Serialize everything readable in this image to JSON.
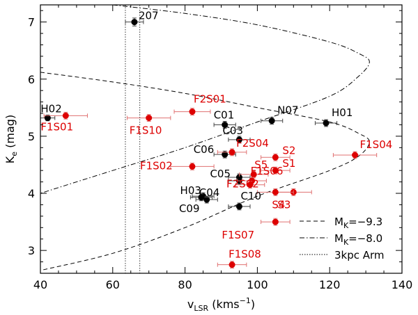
{
  "chart_data": {
    "type": "scatter",
    "title": "",
    "xlabel": {
      "main": "v",
      "sub": "LSR",
      "unit": "(kms",
      "sup": "−1",
      "close": ")"
    },
    "ylabel": {
      "main": "K",
      "sub": "e",
      "unit": "(mag)"
    },
    "xlim": [
      40,
      140
    ],
    "ylim": [
      2.6,
      7.3
    ],
    "xticks": [
      40,
      60,
      80,
      100,
      120,
      140
    ],
    "yticks": [
      3,
      4,
      5,
      6,
      7
    ],
    "colors": {
      "black": "#000000",
      "red": "#dd0000",
      "errbar_black": "#444444",
      "errbar_red": "#e07070"
    },
    "series": [
      {
        "name": "black",
        "points": [
          {
            "label": "207",
            "x": 66,
            "y": 7.0,
            "xerr": 2.5,
            "yerr": 0.07
          },
          {
            "label": "H02",
            "x": 42,
            "y": 5.32,
            "xerr": 2,
            "yerr": 0.05
          },
          {
            "label": "C01",
            "x": 91,
            "y": 5.2,
            "xerr": 3,
            "yerr": 0.06
          },
          {
            "label": "N07",
            "x": 104,
            "y": 5.27,
            "xerr": 3,
            "yerr": 0.06
          },
          {
            "label": "H01",
            "x": 119,
            "y": 5.23,
            "xerr": 3,
            "yerr": 0.06
          },
          {
            "label": "C03",
            "x": 95,
            "y": 4.94,
            "xerr": 3,
            "yerr": 0.06
          },
          {
            "label": "C06",
            "x": 91,
            "y": 4.68,
            "xerr": 3,
            "yerr": 0.06
          },
          {
            "label": "C05",
            "x": 95,
            "y": 4.22,
            "xerr": 3,
            "yerr": 0.06
          },
          {
            "label": "",
            "x": 95,
            "y": 4.28,
            "xerr": 3,
            "yerr": 0.06
          },
          {
            "label": "H03",
            "x": 85,
            "y": 3.95,
            "xerr": 3,
            "yerr": 0.06
          },
          {
            "label": "C04",
            "x": 86,
            "y": 3.89,
            "xerr": 3,
            "yerr": 0.06
          },
          {
            "label": "C09",
            "x": 84.5,
            "y": 3.93,
            "xerr": 3,
            "yerr": 0.06
          },
          {
            "label": "C10",
            "x": 95,
            "y": 3.77,
            "xerr": 3,
            "yerr": 0.06
          }
        ]
      },
      {
        "name": "red",
        "points": [
          {
            "label": "F2S01",
            "x": 82,
            "y": 5.43,
            "xerr": 5,
            "yerr": 0.06
          },
          {
            "label": "F1S01",
            "x": 47,
            "y": 5.36,
            "xerr": 6,
            "yerr": 0.06
          },
          {
            "label": "F1S10",
            "x": 70,
            "y": 5.32,
            "xerr": 6,
            "yerr": 0.06
          },
          {
            "label": "F2S04",
            "x": 93,
            "y": 4.72,
            "xerr": 4,
            "yerr": 0.06
          },
          {
            "label": "S2",
            "x": 105,
            "y": 4.63,
            "xerr": 4,
            "yerr": 0.06
          },
          {
            "label": "F1S04",
            "x": 127,
            "y": 4.67,
            "xerr": 6,
            "yerr": 0.06
          },
          {
            "label": "F1S02",
            "x": 82,
            "y": 4.47,
            "xerr": 6,
            "yerr": 0.06
          },
          {
            "label": "S1",
            "x": 105,
            "y": 4.4,
            "xerr": 4,
            "yerr": 0.06
          },
          {
            "label": "S5",
            "x": 99,
            "y": 4.33,
            "xerr": 4,
            "yerr": 0.06
          },
          {
            "label": "F1S06",
            "x": 98.5,
            "y": 4.22,
            "xerr": 4,
            "yerr": 0.06
          },
          {
            "label": "F2S02",
            "x": 98,
            "y": 4.15,
            "xerr": 4,
            "yerr": 0.06
          },
          {
            "label": "S3",
            "x": 110,
            "y": 4.02,
            "xerr": 5,
            "yerr": 0.06
          },
          {
            "label": "S4",
            "x": 105,
            "y": 4.02,
            "xerr": 5,
            "yerr": 0.06
          },
          {
            "label": "F1S07",
            "x": 105,
            "y": 3.5,
            "xerr": 4,
            "yerr": 0.06
          },
          {
            "label": "F1S08",
            "x": 93,
            "y": 2.75,
            "xerr": 4,
            "yerr": 0.06
          }
        ]
      }
    ],
    "legend": {
      "position": "bottom-right",
      "entries": [
        {
          "style": "dashed",
          "label_main": "M",
          "label_sub": "K",
          "label_rest": "=−9.3"
        },
        {
          "style": "dashdot",
          "label_main": "M",
          "label_sub": "K",
          "label_rest": "=−8.0"
        },
        {
          "style": "dotted",
          "label_main": "3kpc Arm",
          "label_sub": "",
          "label_rest": ""
        }
      ]
    },
    "curves": {
      "dashed_mk_-9.3": [
        [
          40,
          6.12
        ],
        [
          60,
          5.95
        ],
        [
          80,
          5.75
        ],
        [
          100,
          5.5
        ],
        [
          120,
          5.25
        ],
        [
          128,
          5.05
        ],
        [
          131,
          4.9
        ],
        [
          128,
          4.65
        ],
        [
          120,
          4.4
        ],
        [
          100,
          3.95
        ],
        [
          80,
          3.4
        ],
        [
          60,
          2.95
        ],
        [
          40,
          2.65
        ]
      ],
      "dashdot_mk_-8.0": [
        [
          60,
          7.3
        ],
        [
          80,
          7.15
        ],
        [
          100,
          6.95
        ],
        [
          120,
          6.65
        ],
        [
          128,
          6.45
        ],
        [
          131,
          6.3
        ],
        [
          128,
          6.05
        ],
        [
          120,
          5.7
        ],
        [
          100,
          5.25
        ],
        [
          80,
          4.8
        ],
        [
          60,
          4.4
        ],
        [
          40,
          4.0
        ]
      ],
      "dotted_3kpc_arm_x": [
        63.5,
        67.5
      ]
    }
  }
}
